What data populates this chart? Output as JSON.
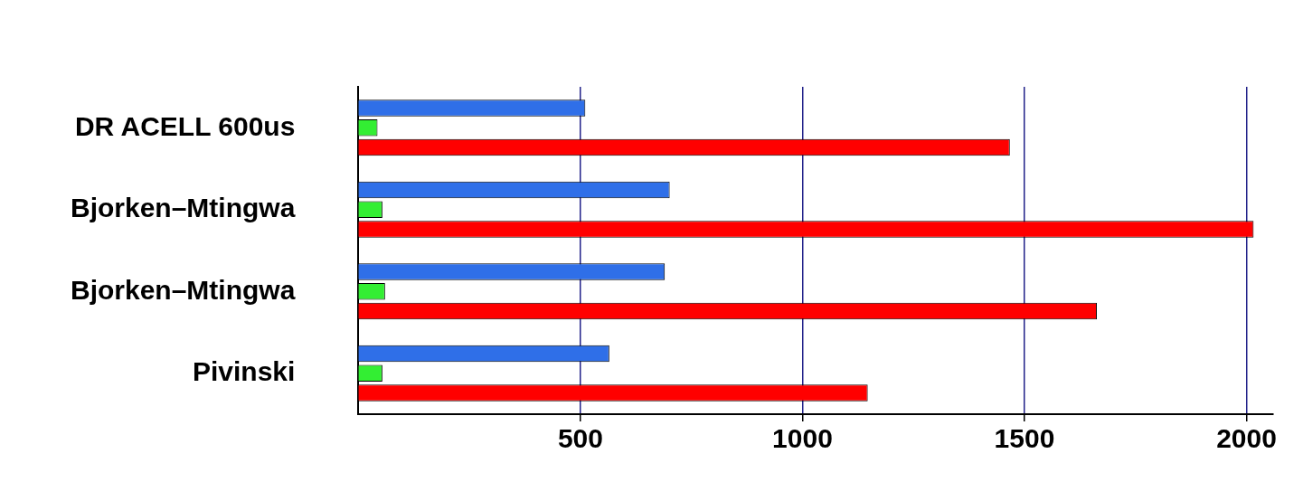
{
  "chart_data": {
    "type": "bar",
    "orientation": "horizontal",
    "categories": [
      "DR ACELL 600us",
      "Bjorken–Mtingwa",
      "Bjorken–Mtingwa",
      "Pivinski"
    ],
    "series": [
      {
        "color": "#2f6fe8",
        "values": [
          511,
          701,
          690,
          565
        ]
      },
      {
        "color": "#33ee33",
        "values": [
          43,
          54,
          60,
          54
        ]
      },
      {
        "color": "#ff0000",
        "values": [
          1467,
          2016,
          1663,
          1147
        ]
      }
    ],
    "xlim": [
      0,
      2060
    ],
    "xticks": [
      500,
      1000,
      1500,
      2000
    ],
    "grid": "x"
  }
}
